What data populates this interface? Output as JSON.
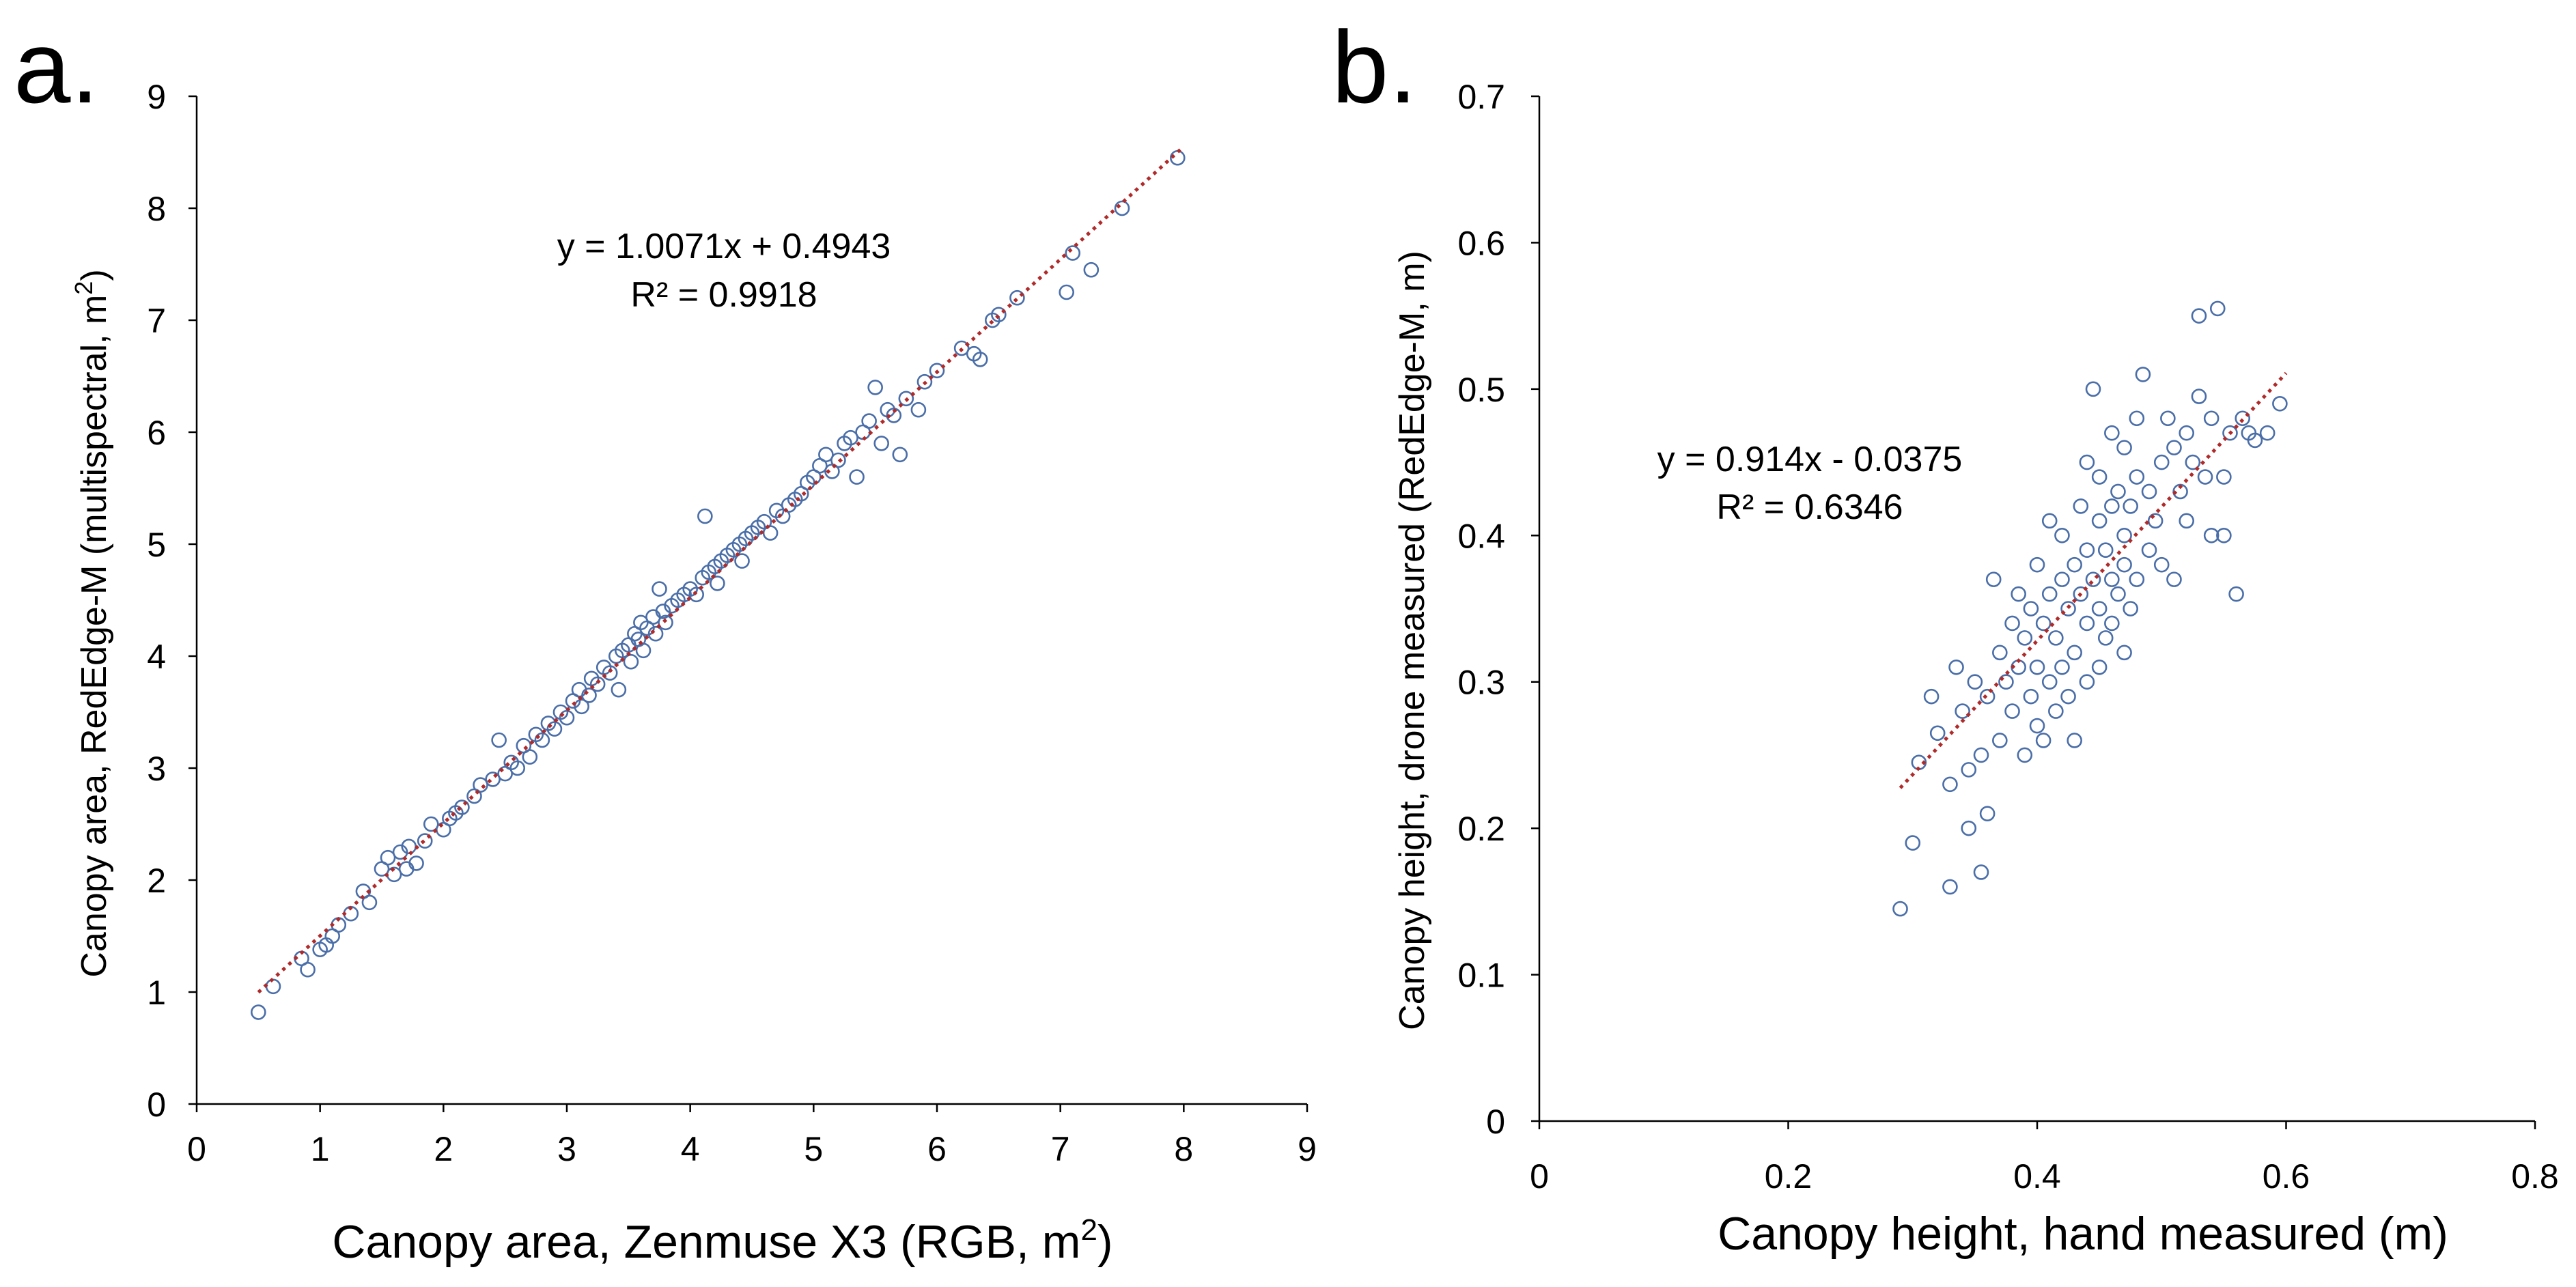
{
  "colors": {
    "marker": "#4a6ea8",
    "trendline": "#b02a2a",
    "axis": "#000000"
  },
  "chart_data": [
    {
      "type": "scatter",
      "panel_label": "a.",
      "xlabel": {
        "text": "Canopy area, Zenmuse X3 (RGB, m",
        "sup": "2",
        "end": ")"
      },
      "ylabel": {
        "text": "Canopy area, RedEdge-M (multispectral, m",
        "sup": "2",
        "end": ")"
      },
      "xlim": [
        0,
        9
      ],
      "ylim": [
        0,
        9
      ],
      "xticks": [
        "0",
        "1",
        "2",
        "3",
        "4",
        "5",
        "6",
        "7",
        "8",
        "9"
      ],
      "yticks": [
        "0",
        "1",
        "2",
        "3",
        "4",
        "5",
        "6",
        "7",
        "8",
        "9"
      ],
      "trendline": {
        "slope": 1.0071,
        "intercept": 0.4943,
        "x_range": [
          0.5,
          8.0
        ]
      },
      "equation": "y = 1.0071x + 0.4943",
      "r2": "R² = 0.9918",
      "points": [
        [
          0.5,
          0.82
        ],
        [
          0.62,
          1.05
        ],
        [
          0.85,
          1.3
        ],
        [
          0.9,
          1.2
        ],
        [
          1.0,
          1.38
        ],
        [
          1.05,
          1.42
        ],
        [
          1.1,
          1.5
        ],
        [
          1.15,
          1.6
        ],
        [
          1.25,
          1.7
        ],
        [
          1.35,
          1.9
        ],
        [
          1.4,
          1.8
        ],
        [
          1.5,
          2.1
        ],
        [
          1.55,
          2.2
        ],
        [
          1.6,
          2.05
        ],
        [
          1.65,
          2.25
        ],
        [
          1.7,
          2.1
        ],
        [
          1.72,
          2.3
        ],
        [
          1.78,
          2.15
        ],
        [
          1.85,
          2.35
        ],
        [
          1.9,
          2.5
        ],
        [
          2.0,
          2.45
        ],
        [
          2.05,
          2.55
        ],
        [
          2.1,
          2.6
        ],
        [
          2.15,
          2.65
        ],
        [
          2.25,
          2.75
        ],
        [
          2.3,
          2.85
        ],
        [
          2.4,
          2.9
        ],
        [
          2.45,
          3.25
        ],
        [
          2.5,
          2.95
        ],
        [
          2.55,
          3.05
        ],
        [
          2.6,
          3.0
        ],
        [
          2.65,
          3.2
        ],
        [
          2.7,
          3.1
        ],
        [
          2.75,
          3.3
        ],
        [
          2.8,
          3.25
        ],
        [
          2.85,
          3.4
        ],
        [
          2.9,
          3.35
        ],
        [
          2.95,
          3.5
        ],
        [
          3.0,
          3.45
        ],
        [
          3.05,
          3.6
        ],
        [
          3.1,
          3.7
        ],
        [
          3.12,
          3.55
        ],
        [
          3.18,
          3.65
        ],
        [
          3.2,
          3.8
        ],
        [
          3.25,
          3.75
        ],
        [
          3.3,
          3.9
        ],
        [
          3.35,
          3.85
        ],
        [
          3.4,
          4.0
        ],
        [
          3.42,
          3.7
        ],
        [
          3.45,
          4.05
        ],
        [
          3.5,
          4.1
        ],
        [
          3.52,
          3.95
        ],
        [
          3.55,
          4.2
        ],
        [
          3.58,
          4.15
        ],
        [
          3.6,
          4.3
        ],
        [
          3.62,
          4.05
        ],
        [
          3.65,
          4.25
        ],
        [
          3.7,
          4.35
        ],
        [
          3.72,
          4.2
        ],
        [
          3.75,
          4.6
        ],
        [
          3.78,
          4.4
        ],
        [
          3.8,
          4.3
        ],
        [
          3.85,
          4.45
        ],
        [
          3.9,
          4.5
        ],
        [
          3.95,
          4.55
        ],
        [
          4.0,
          4.6
        ],
        [
          4.05,
          4.55
        ],
        [
          4.1,
          4.7
        ],
        [
          4.12,
          5.25
        ],
        [
          4.15,
          4.75
        ],
        [
          4.2,
          4.8
        ],
        [
          4.22,
          4.65
        ],
        [
          4.25,
          4.85
        ],
        [
          4.3,
          4.9
        ],
        [
          4.35,
          4.95
        ],
        [
          4.4,
          5.0
        ],
        [
          4.42,
          4.85
        ],
        [
          4.45,
          5.05
        ],
        [
          4.5,
          5.1
        ],
        [
          4.55,
          5.15
        ],
        [
          4.6,
          5.2
        ],
        [
          4.65,
          5.1
        ],
        [
          4.7,
          5.3
        ],
        [
          4.75,
          5.25
        ],
        [
          4.8,
          5.35
        ],
        [
          4.85,
          5.4
        ],
        [
          4.9,
          5.45
        ],
        [
          4.95,
          5.55
        ],
        [
          5.0,
          5.6
        ],
        [
          5.05,
          5.7
        ],
        [
          5.1,
          5.8
        ],
        [
          5.15,
          5.65
        ],
        [
          5.2,
          5.75
        ],
        [
          5.25,
          5.9
        ],
        [
          5.3,
          5.95
        ],
        [
          5.35,
          5.6
        ],
        [
          5.4,
          6.0
        ],
        [
          5.45,
          6.1
        ],
        [
          5.5,
          6.4
        ],
        [
          5.55,
          5.9
        ],
        [
          5.6,
          6.2
        ],
        [
          5.65,
          6.15
        ],
        [
          5.7,
          5.8
        ],
        [
          5.75,
          6.3
        ],
        [
          5.85,
          6.2
        ],
        [
          5.9,
          6.45
        ],
        [
          6.0,
          6.55
        ],
        [
          6.2,
          6.75
        ],
        [
          6.3,
          6.7
        ],
        [
          6.35,
          6.65
        ],
        [
          6.45,
          7.0
        ],
        [
          6.5,
          7.05
        ],
        [
          6.65,
          7.2
        ],
        [
          7.05,
          7.25
        ],
        [
          7.1,
          7.6
        ],
        [
          7.25,
          7.45
        ],
        [
          7.5,
          8.0
        ],
        [
          7.95,
          8.45
        ]
      ]
    },
    {
      "type": "scatter",
      "panel_label": "b.",
      "xlabel": {
        "text": "Canopy height, hand measured (m)",
        "sup": "",
        "end": ""
      },
      "ylabel": {
        "text": "Canopy height, drone measured  (RedEdge-M, m)",
        "sup": "",
        "end": ""
      },
      "xlim": [
        0,
        0.8
      ],
      "ylim": [
        0,
        0.7
      ],
      "xticks": [
        "0",
        "0.2",
        "0.4",
        "0.6",
        "0.8"
      ],
      "yticks": [
        "0",
        "0.1",
        "0.2",
        "0.3",
        "0.4",
        "0.5",
        "0.6",
        "0.7"
      ],
      "trendline": {
        "slope": 0.914,
        "intercept": -0.0375,
        "x_range": [
          0.29,
          0.6
        ]
      },
      "equation": "y = 0.914x - 0.0375",
      "r2": "R² = 0.6346",
      "points": [
        [
          0.29,
          0.145
        ],
        [
          0.3,
          0.19
        ],
        [
          0.305,
          0.245
        ],
        [
          0.315,
          0.29
        ],
        [
          0.32,
          0.265
        ],
        [
          0.33,
          0.16
        ],
        [
          0.33,
          0.23
        ],
        [
          0.335,
          0.31
        ],
        [
          0.34,
          0.28
        ],
        [
          0.345,
          0.2
        ],
        [
          0.345,
          0.24
        ],
        [
          0.35,
          0.3
        ],
        [
          0.355,
          0.17
        ],
        [
          0.355,
          0.25
        ],
        [
          0.36,
          0.21
        ],
        [
          0.36,
          0.29
        ],
        [
          0.365,
          0.37
        ],
        [
          0.37,
          0.26
        ],
        [
          0.37,
          0.32
        ],
        [
          0.375,
          0.3
        ],
        [
          0.38,
          0.28
        ],
        [
          0.38,
          0.34
        ],
        [
          0.385,
          0.31
        ],
        [
          0.385,
          0.36
        ],
        [
          0.39,
          0.25
        ],
        [
          0.39,
          0.33
        ],
        [
          0.395,
          0.29
        ],
        [
          0.395,
          0.35
        ],
        [
          0.4,
          0.27
        ],
        [
          0.4,
          0.31
        ],
        [
          0.4,
          0.38
        ],
        [
          0.405,
          0.26
        ],
        [
          0.405,
          0.34
        ],
        [
          0.41,
          0.3
        ],
        [
          0.41,
          0.36
        ],
        [
          0.41,
          0.41
        ],
        [
          0.415,
          0.28
        ],
        [
          0.415,
          0.33
        ],
        [
          0.42,
          0.31
        ],
        [
          0.42,
          0.37
        ],
        [
          0.42,
          0.4
        ],
        [
          0.425,
          0.29
        ],
        [
          0.425,
          0.35
        ],
        [
          0.43,
          0.26
        ],
        [
          0.43,
          0.32
        ],
        [
          0.43,
          0.38
        ],
        [
          0.435,
          0.36
        ],
        [
          0.435,
          0.42
        ],
        [
          0.44,
          0.3
        ],
        [
          0.44,
          0.34
        ],
        [
          0.44,
          0.39
        ],
        [
          0.44,
          0.45
        ],
        [
          0.445,
          0.37
        ],
        [
          0.445,
          0.5
        ],
        [
          0.45,
          0.31
        ],
        [
          0.45,
          0.35
        ],
        [
          0.45,
          0.41
        ],
        [
          0.45,
          0.44
        ],
        [
          0.455,
          0.33
        ],
        [
          0.455,
          0.39
        ],
        [
          0.46,
          0.34
        ],
        [
          0.46,
          0.37
        ],
        [
          0.46,
          0.42
        ],
        [
          0.46,
          0.47
        ],
        [
          0.465,
          0.36
        ],
        [
          0.465,
          0.43
        ],
        [
          0.47,
          0.32
        ],
        [
          0.47,
          0.38
        ],
        [
          0.47,
          0.4
        ],
        [
          0.47,
          0.46
        ],
        [
          0.475,
          0.35
        ],
        [
          0.475,
          0.42
        ],
        [
          0.48,
          0.37
        ],
        [
          0.48,
          0.44
        ],
        [
          0.48,
          0.48
        ],
        [
          0.485,
          0.51
        ],
        [
          0.49,
          0.39
        ],
        [
          0.49,
          0.43
        ],
        [
          0.495,
          0.41
        ],
        [
          0.5,
          0.38
        ],
        [
          0.5,
          0.45
        ],
        [
          0.505,
          0.48
        ],
        [
          0.51,
          0.37
        ],
        [
          0.51,
          0.46
        ],
        [
          0.515,
          0.43
        ],
        [
          0.52,
          0.41
        ],
        [
          0.52,
          0.47
        ],
        [
          0.525,
          0.45
        ],
        [
          0.53,
          0.495
        ],
        [
          0.53,
          0.55
        ],
        [
          0.535,
          0.44
        ],
        [
          0.54,
          0.4
        ],
        [
          0.54,
          0.48
        ],
        [
          0.545,
          0.555
        ],
        [
          0.55,
          0.44
        ],
        [
          0.55,
          0.4
        ],
        [
          0.555,
          0.47
        ],
        [
          0.56,
          0.36
        ],
        [
          0.565,
          0.48
        ],
        [
          0.57,
          0.47
        ],
        [
          0.575,
          0.465
        ],
        [
          0.585,
          0.47
        ],
        [
          0.595,
          0.49
        ]
      ]
    }
  ]
}
